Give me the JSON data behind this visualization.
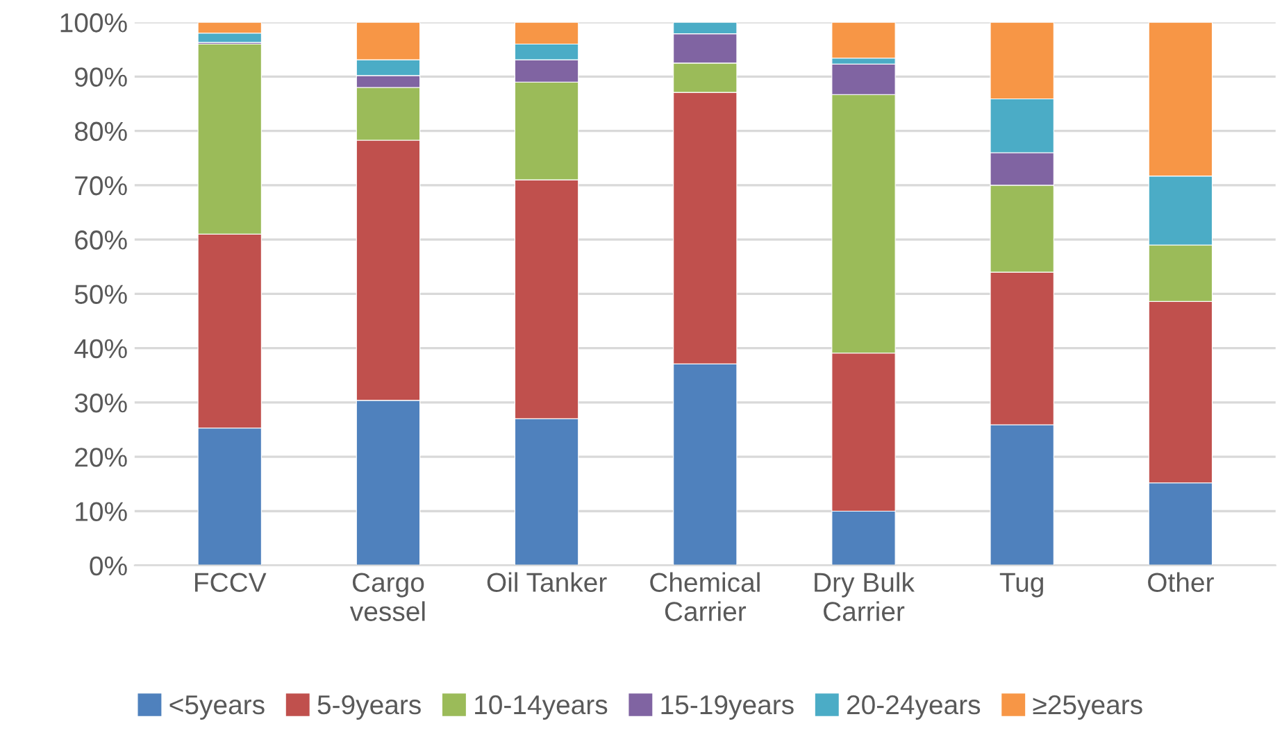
{
  "chart_data": {
    "type": "bar",
    "stacked": true,
    "categories": [
      "FCCV",
      "Cargo\nvessel",
      "Oil Tanker",
      "Chemical\nCarrier",
      "Dry Bulk\nCarrier",
      "Tug",
      "Other"
    ],
    "series": [
      {
        "name": "<5years",
        "color": "#4f81bd",
        "values": [
          25.3,
          30.4,
          27.0,
          37.1,
          10.0,
          25.9,
          15.2
        ]
      },
      {
        "name": "5-9years",
        "color": "#c0504d",
        "values": [
          35.7,
          47.9,
          44.0,
          50.0,
          29.1,
          28.1,
          33.4
        ]
      },
      {
        "name": "10-14years",
        "color": "#9bbb59",
        "values": [
          35.0,
          9.7,
          18.0,
          5.4,
          47.6,
          16.0,
          10.4
        ]
      },
      {
        "name": "15-19years",
        "color": "#8064a2",
        "values": [
          0.3,
          2.2,
          4.1,
          5.4,
          5.6,
          6.0,
          null
        ]
      },
      {
        "name": "20-24years",
        "color": "#4bacc6",
        "values": [
          1.7,
          2.9,
          2.9,
          2.1,
          1.1,
          9.9,
          12.7
        ]
      },
      {
        "name": "≥25years",
        "color": "#f79646",
        "values": [
          2.0,
          6.9,
          4.0,
          null,
          6.6,
          14.1,
          28.3
        ]
      }
    ],
    "ylim": [
      0,
      100
    ],
    "yticks": [
      {
        "value": 0,
        "label": "0%"
      },
      {
        "value": 10,
        "label": "10%"
      },
      {
        "value": 20,
        "label": "20%"
      },
      {
        "value": 30,
        "label": "30%"
      },
      {
        "value": 40,
        "label": "40%"
      },
      {
        "value": 50,
        "label": "50%"
      },
      {
        "value": 60,
        "label": "60%"
      },
      {
        "value": 70,
        "label": "70%"
      },
      {
        "value": 80,
        "label": "80%"
      },
      {
        "value": 90,
        "label": "90%"
      },
      {
        "value": 100,
        "label": "100%"
      }
    ],
    "grid": "y",
    "legend": "bottom"
  }
}
